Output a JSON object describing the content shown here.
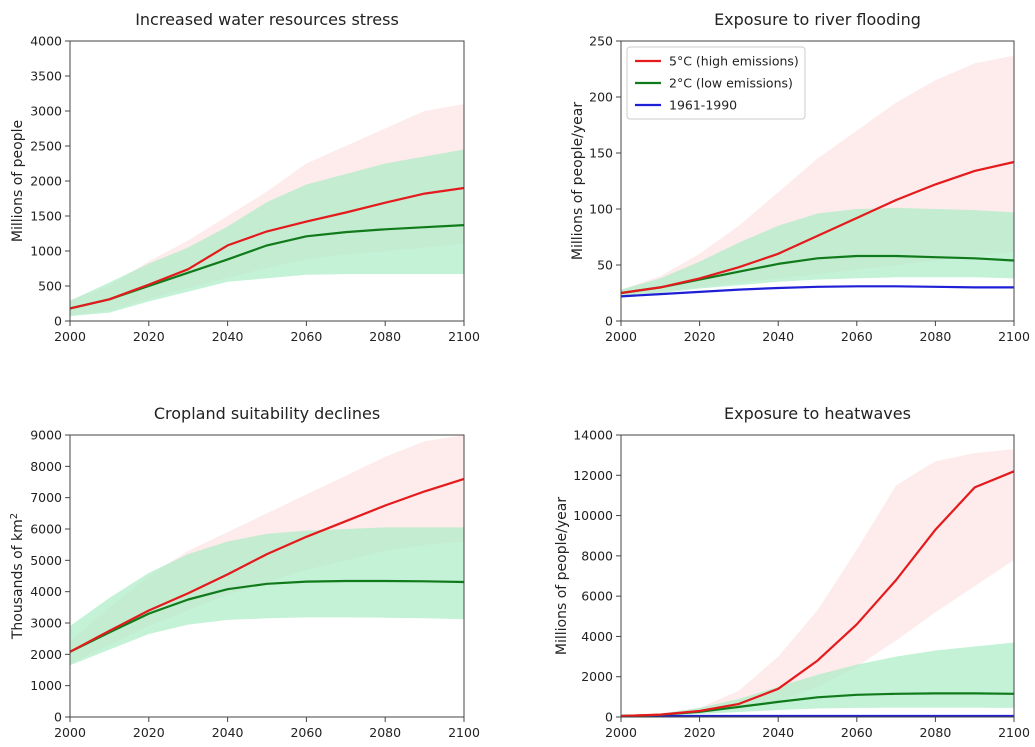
{
  "chart_data": [
    {
      "type": "line",
      "title": "Increased water resources stress",
      "ylabel": "Millions of people",
      "xlabel": "",
      "xlim": [
        2000,
        2100
      ],
      "ylim": [
        0,
        4000
      ],
      "xticks": [
        "2000",
        "2020",
        "2040",
        "2060",
        "2080",
        "2100"
      ],
      "yticks": [
        "0",
        "500",
        "1000",
        "1500",
        "2000",
        "2500",
        "3000",
        "3500",
        "4000"
      ],
      "x": [
        2000,
        2010,
        2020,
        2030,
        2040,
        2050,
        2060,
        2070,
        2080,
        2090,
        2100
      ],
      "series": [
        {
          "key": "high",
          "color": "#e41a1c",
          "values": [
            180,
            310,
            520,
            740,
            1080,
            1280,
            1420,
            1550,
            1690,
            1820,
            1900
          ],
          "band_low": [
            80,
            150,
            320,
            470,
            620,
            760,
            880,
            950,
            1000,
            1050,
            1100
          ],
          "band_high": [
            300,
            500,
            850,
            1150,
            1500,
            1850,
            2250,
            2500,
            2750,
            3000,
            3100
          ],
          "band_color": "#fde2e2"
        },
        {
          "key": "low",
          "color": "#117a1b",
          "values": [
            180,
            310,
            500,
            690,
            880,
            1080,
            1210,
            1270,
            1310,
            1340,
            1370
          ],
          "band_low": [
            70,
            120,
            280,
            420,
            560,
            610,
            660,
            670,
            670,
            670,
            670
          ],
          "band_high": [
            290,
            550,
            820,
            1050,
            1350,
            1700,
            1950,
            2100,
            2250,
            2350,
            2450
          ],
          "band_color": "#a9ecc6"
        }
      ],
      "legend": null
    },
    {
      "type": "line",
      "title": "Exposure to river flooding",
      "ylabel": "Millions of people/year",
      "xlabel": "",
      "xlim": [
        2000,
        2100
      ],
      "ylim": [
        0,
        250
      ],
      "xticks": [
        "2000",
        "2020",
        "2040",
        "2060",
        "2080",
        "2100"
      ],
      "yticks": [
        "0",
        "50",
        "100",
        "150",
        "200",
        "250"
      ],
      "x": [
        2000,
        2010,
        2020,
        2030,
        2040,
        2050,
        2060,
        2070,
        2080,
        2090,
        2100
      ],
      "series": [
        {
          "key": "high",
          "color": "#e41a1c",
          "values": [
            25,
            30,
            38,
            48,
            60,
            76,
            92,
            108,
            122,
            134,
            142
          ],
          "band_low": [
            22,
            26,
            30,
            34,
            38,
            42,
            46,
            50,
            54,
            58,
            62
          ],
          "band_high": [
            28,
            40,
            60,
            85,
            115,
            145,
            170,
            195,
            215,
            230,
            237
          ],
          "band_color": "#fde2e2"
        },
        {
          "key": "low",
          "color": "#117a1b",
          "values": [
            25,
            30,
            37,
            44,
            51,
            56,
            58,
            58,
            57,
            56,
            54
          ],
          "band_low": [
            22,
            25,
            29,
            32,
            35,
            37,
            38,
            39,
            39,
            39,
            38
          ],
          "band_high": [
            28,
            38,
            53,
            70,
            85,
            96,
            100,
            101,
            100,
            99,
            97
          ],
          "band_color": "#a9ecc6"
        },
        {
          "key": "hist",
          "color": "#1f1fd6",
          "values": [
            22,
            24,
            26,
            28,
            29.5,
            30.5,
            31,
            31,
            30.5,
            30,
            30
          ],
          "band_low": null,
          "band_high": null,
          "band_color": null
        }
      ],
      "legend": {
        "placement": "top-left",
        "entries": [
          {
            "label": "5°C (high emissions)",
            "color": "#e41a1c"
          },
          {
            "label": "2°C (low emissions)",
            "color": "#117a1b"
          },
          {
            "label": "1961-1990",
            "color": "#1f1fd6"
          }
        ]
      }
    },
    {
      "type": "line",
      "title": "Cropland suitability declines",
      "ylabel": "Thousands of km",
      "ylabel_sup": "2",
      "xlabel": "",
      "xlim": [
        2000,
        2100
      ],
      "ylim": [
        0,
        9000
      ],
      "xticks": [
        "2000",
        "2020",
        "2040",
        "2060",
        "2080",
        "2100"
      ],
      "yticks": [
        "0",
        "1000",
        "2000",
        "3000",
        "4000",
        "5000",
        "6000",
        "7000",
        "8000",
        "9000"
      ],
      "x": [
        2000,
        2010,
        2020,
        2030,
        2040,
        2050,
        2060,
        2070,
        2080,
        2090,
        2100
      ],
      "series": [
        {
          "key": "high",
          "color": "#e41a1c",
          "values": [
            2080,
            2750,
            3400,
            3950,
            4550,
            5200,
            5750,
            6250,
            6750,
            7200,
            7600
          ],
          "band_low": [
            1700,
            2300,
            2900,
            3400,
            3900,
            4300,
            4700,
            5000,
            5300,
            5500,
            5600
          ],
          "band_high": [
            2400,
            3500,
            4500,
            5300,
            5900,
            6500,
            7100,
            7700,
            8300,
            8800,
            9000
          ],
          "band_color": "#fde2e2"
        },
        {
          "key": "low",
          "color": "#117a1b",
          "values": [
            2080,
            2700,
            3300,
            3750,
            4080,
            4250,
            4320,
            4340,
            4340,
            4330,
            4310
          ],
          "band_low": [
            1650,
            2150,
            2650,
            2950,
            3100,
            3150,
            3180,
            3180,
            3170,
            3150,
            3120
          ],
          "band_high": [
            2900,
            3800,
            4600,
            5200,
            5600,
            5850,
            5950,
            6000,
            6050,
            6050,
            6050
          ],
          "band_color": "#a9ecc6"
        }
      ],
      "legend": null
    },
    {
      "type": "line",
      "title": "Exposure to heatwaves",
      "ylabel": "Millions of people/year",
      "xlabel": "",
      "xlim": [
        2000,
        2100
      ],
      "ylim": [
        0,
        14000
      ],
      "xticks": [
        "2000",
        "2020",
        "2040",
        "2060",
        "2080",
        "2100"
      ],
      "yticks": [
        "0",
        "2000",
        "4000",
        "6000",
        "8000",
        "10000",
        "12000",
        "14000"
      ],
      "x": [
        2000,
        2010,
        2020,
        2030,
        2040,
        2050,
        2060,
        2070,
        2080,
        2090,
        2100
      ],
      "series": [
        {
          "key": "high",
          "color": "#e41a1c",
          "values": [
            50,
            120,
            300,
            650,
            1400,
            2800,
            4600,
            6800,
            9300,
            11400,
            12200
          ],
          "band_low": [
            40,
            90,
            200,
            400,
            800,
            1500,
            2500,
            3800,
            5200,
            6500,
            7800
          ],
          "band_high": [
            60,
            160,
            450,
            1300,
            3000,
            5300,
            8300,
            11500,
            12700,
            13100,
            13300
          ],
          "band_color": "#fde2e2"
        },
        {
          "key": "low",
          "color": "#117a1b",
          "values": [
            50,
            110,
            260,
            500,
            750,
            980,
            1100,
            1150,
            1170,
            1170,
            1150
          ],
          "band_low": [
            40,
            80,
            150,
            250,
            350,
            420,
            450,
            460,
            460,
            460,
            450
          ],
          "band_high": [
            60,
            160,
            450,
            900,
            1500,
            2100,
            2600,
            3000,
            3300,
            3500,
            3700
          ],
          "band_color": "#a9ecc6"
        },
        {
          "key": "hist",
          "color": "#1f1fd6",
          "values": [
            50,
            50,
            50,
            50,
            50,
            50,
            50,
            50,
            50,
            50,
            50
          ],
          "band_low": null,
          "band_high": null,
          "band_color": null
        }
      ],
      "legend": null
    }
  ]
}
